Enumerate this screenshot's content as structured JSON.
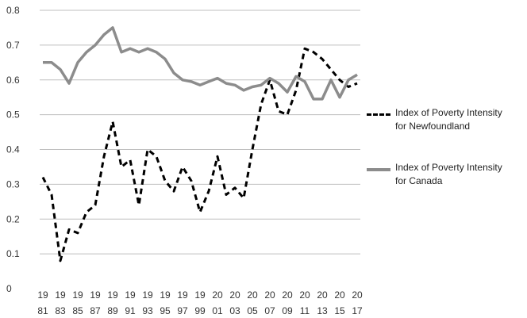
{
  "chart_data": {
    "type": "line",
    "title": "",
    "xlabel": "",
    "ylabel": "",
    "ylim": [
      0,
      0.8
    ],
    "yticks": [
      "0",
      "0.1",
      "0.2",
      "0.3",
      "0.4",
      "0.5",
      "0.6",
      "0.7",
      "0.8"
    ],
    "grid": "horizontal",
    "legend_position": "right",
    "x_tick_labels": [
      {
        "top": "19",
        "bottom": "81"
      },
      {
        "top": "19",
        "bottom": "83"
      },
      {
        "top": "19",
        "bottom": "85"
      },
      {
        "top": "19",
        "bottom": "87"
      },
      {
        "top": "19",
        "bottom": "89"
      },
      {
        "top": "19",
        "bottom": "91"
      },
      {
        "top": "19",
        "bottom": "93"
      },
      {
        "top": "19",
        "bottom": "95"
      },
      {
        "top": "19",
        "bottom": "97"
      },
      {
        "top": "19",
        "bottom": "99"
      },
      {
        "top": "20",
        "bottom": "01"
      },
      {
        "top": "20",
        "bottom": "03"
      },
      {
        "top": "20",
        "bottom": "05"
      },
      {
        "top": "20",
        "bottom": "07"
      },
      {
        "top": "20",
        "bottom": "09"
      },
      {
        "top": "20",
        "bottom": "11"
      },
      {
        "top": "20",
        "bottom": "13"
      },
      {
        "top": "20",
        "bottom": "15"
      },
      {
        "top": "20",
        "bottom": "17"
      }
    ],
    "x": [
      1981,
      1982,
      1983,
      1984,
      1985,
      1986,
      1987,
      1988,
      1989,
      1990,
      1991,
      1992,
      1993,
      1994,
      1995,
      1996,
      1997,
      1998,
      1999,
      2000,
      2001,
      2002,
      2003,
      2004,
      2005,
      2006,
      2007,
      2008,
      2009,
      2010,
      2011,
      2012,
      2013,
      2014,
      2015,
      2016,
      2017
    ],
    "series": [
      {
        "name": "Index of Poverty Intensity for Newfoundland",
        "style": "dashed",
        "color": "#000000",
        "values": [
          0.32,
          0.27,
          0.08,
          0.17,
          0.16,
          0.22,
          0.24,
          0.38,
          0.48,
          0.35,
          0.37,
          0.24,
          0.4,
          0.38,
          0.31,
          0.28,
          0.35,
          0.31,
          0.22,
          0.28,
          0.38,
          0.27,
          0.29,
          0.26,
          0.4,
          0.53,
          0.6,
          0.51,
          0.5,
          0.57,
          0.69,
          0.68,
          0.66,
          0.63,
          0.6,
          0.58,
          0.59
        ]
      },
      {
        "name": "Index of Poverty Intensity for Canada",
        "style": "solid",
        "color": "#8c8c8c",
        "values": [
          0.65,
          0.65,
          0.63,
          0.59,
          0.65,
          0.68,
          0.7,
          0.73,
          0.75,
          0.68,
          0.69,
          0.68,
          0.69,
          0.68,
          0.66,
          0.62,
          0.6,
          0.595,
          0.585,
          0.595,
          0.605,
          0.59,
          0.585,
          0.57,
          0.58,
          0.585,
          0.605,
          0.59,
          0.565,
          0.61,
          0.595,
          0.545,
          0.545,
          0.6,
          0.55,
          0.6,
          0.615
        ]
      }
    ]
  },
  "legend": {
    "newfoundland_line1": "Index of Poverty Intensity",
    "newfoundland_line2": "for Newfoundland",
    "canada_line1": "Index of Poverty Intensity",
    "canada_line2": "for Canada"
  }
}
